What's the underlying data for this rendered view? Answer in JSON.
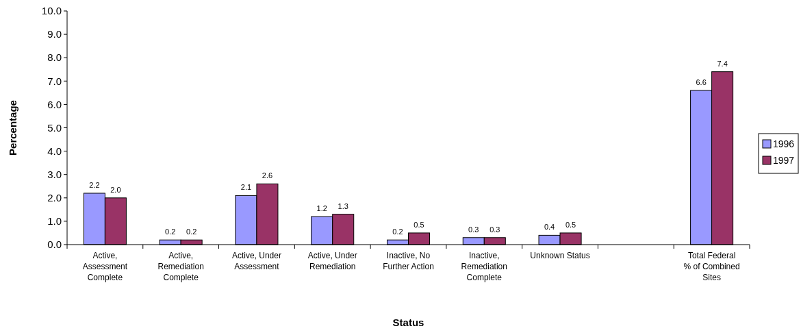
{
  "chart_data": {
    "type": "bar",
    "xlabel": "Status",
    "ylabel": "Percentage",
    "categories": [
      "Active, Assessment Complete",
      "Active, Remediation Complete",
      "Active, Under Assessment",
      "Active, Under Remediation",
      "Inactive, No Further Action",
      "Inactive, Remediation Complete",
      "Unknown Status",
      null,
      "Total Federal % of Combined Sites"
    ],
    "series": [
      {
        "name": "1996",
        "color": "#9999ff",
        "values": [
          2.2,
          0.2,
          2.1,
          1.2,
          0.2,
          0.3,
          0.4,
          null,
          6.6
        ],
        "value_labels": [
          "2.2",
          "0.2",
          "2.1",
          "1.2",
          "0.2",
          "0.3",
          "0.4",
          null,
          "6.6"
        ]
      },
      {
        "name": "1997",
        "color": "#993366",
        "values": [
          2.0,
          0.2,
          2.6,
          1.3,
          0.5,
          0.3,
          0.5,
          null,
          7.4
        ],
        "value_labels": [
          "2.0",
          "0.2",
          "2.6",
          "1.3",
          "0.5",
          "0.3",
          "0.5",
          null,
          "7.4"
        ]
      }
    ],
    "ylim": [
      0,
      10
    ],
    "yticks": [
      {
        "value": 0,
        "label": "0.0"
      },
      {
        "value": 1,
        "label": "1.0"
      },
      {
        "value": 2,
        "label": "2.0"
      },
      {
        "value": 3,
        "label": "3.0"
      },
      {
        "value": 4,
        "label": "4.0"
      },
      {
        "value": 5,
        "label": "5.0"
      },
      {
        "value": 6,
        "label": "6.0"
      },
      {
        "value": 7,
        "label": "7.0"
      },
      {
        "value": 8,
        "label": "8.0"
      },
      {
        "value": 9,
        "label": "9.0"
      },
      {
        "value": 10,
        "label": "10.0"
      }
    ],
    "legend": "right",
    "grid": false
  }
}
